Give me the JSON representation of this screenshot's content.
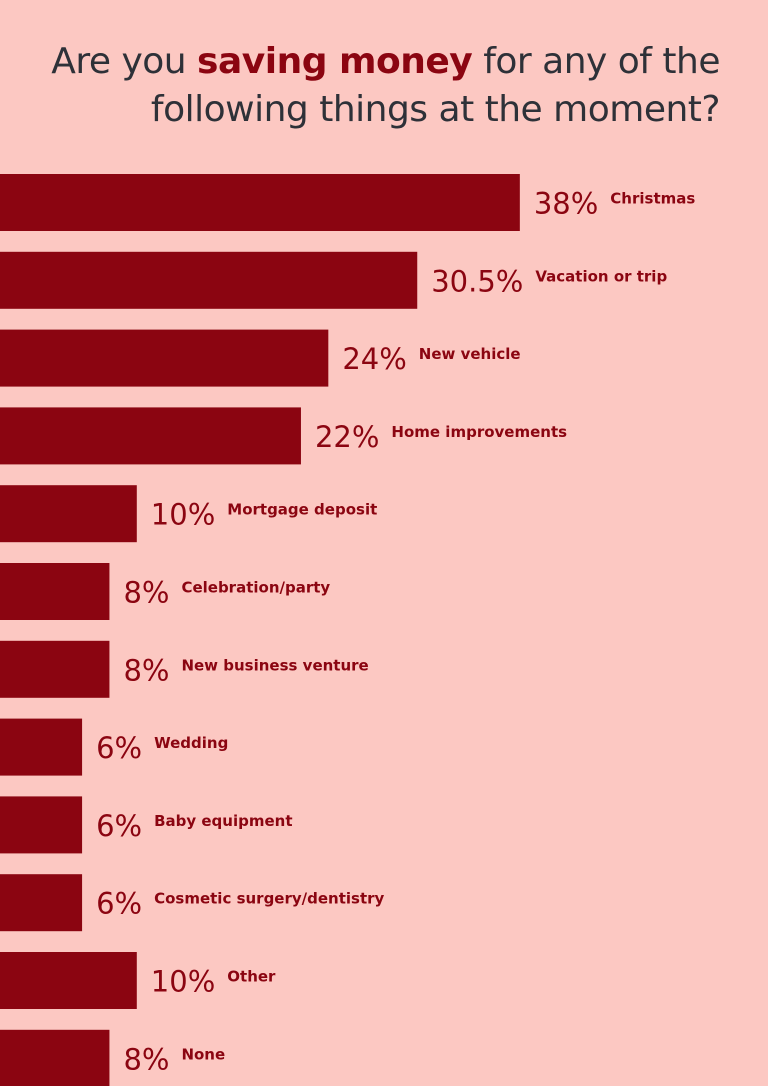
{
  "title": {
    "before": "Are you ",
    "highlight": "saving money",
    "after": " for any of the following things at the moment?"
  },
  "colors": {
    "background": "#fcc8c2",
    "bar": "#8b0511",
    "title_text": "#2e3138",
    "highlight_text": "#8b0511"
  },
  "chart_data": {
    "type": "bar",
    "orientation": "horizontal",
    "title": "Are you saving money for any of the following things at the moment?",
    "categories": [
      "Christmas",
      "Vacation or trip",
      "New vehicle",
      "Home improvements",
      "Mortgage deposit",
      "Celebration/party",
      "New business venture",
      "Wedding",
      "Baby equipment",
      "Cosmetic surgery/dentistry",
      "Other",
      "None"
    ],
    "values": [
      38,
      30.5,
      24,
      22,
      10,
      8,
      8,
      6,
      6,
      6,
      10,
      8
    ],
    "value_labels": [
      "38%",
      "30.5%",
      "24%",
      "22%",
      "10%",
      "8%",
      "8%",
      "6%",
      "6%",
      "6%",
      "10%",
      "8%"
    ],
    "unit": "%",
    "grid": false,
    "legend": "none"
  }
}
